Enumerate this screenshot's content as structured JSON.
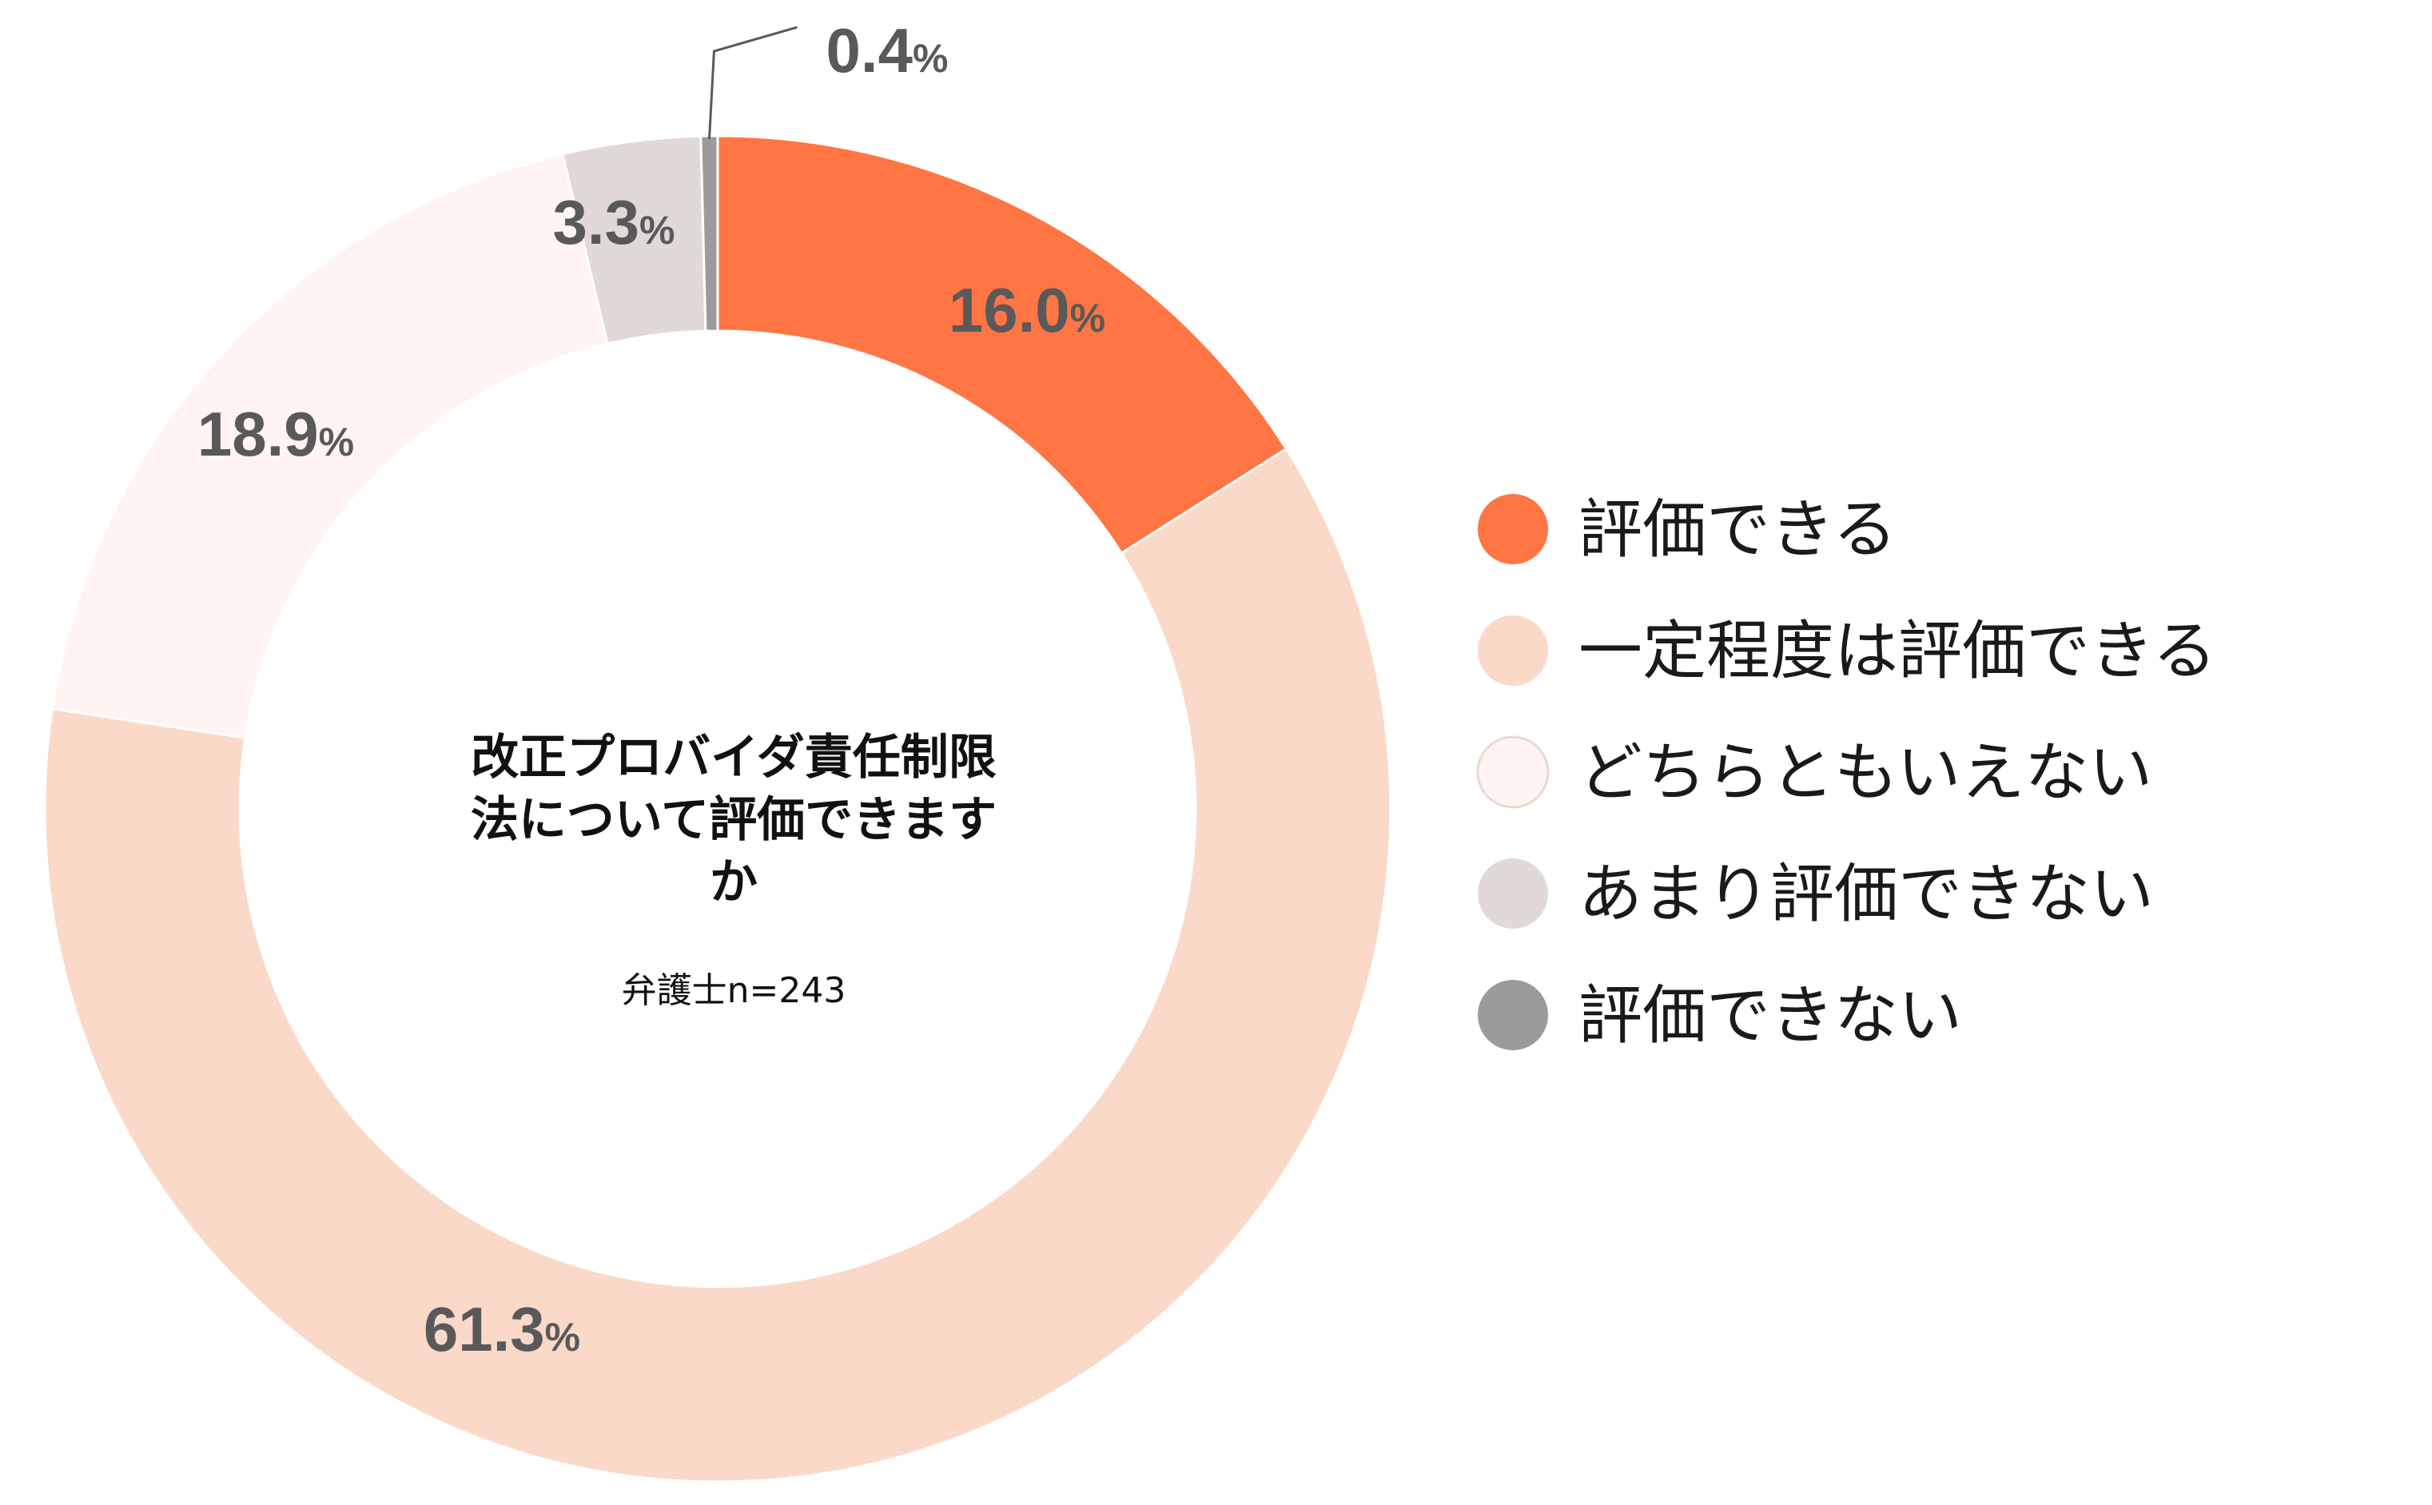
{
  "chart_data": {
    "type": "pie",
    "donut": true,
    "center_title_lines": [
      "改正プロバイダ責任制限",
      "法について評価できます",
      "か"
    ],
    "center_subtitle": "弁護士n=243",
    "unit": "%",
    "slices": [
      {
        "label": "評価できる",
        "value": 16.0,
        "value_text": "16.0",
        "color": "#FF7543"
      },
      {
        "label": "一定程度は評価できる",
        "value": 61.3,
        "value_text": "61.3",
        "color": "#FAD9C9"
      },
      {
        "label": "どちらともいえない",
        "value": 18.9,
        "value_text": "18.9",
        "color": "#FFF4F1"
      },
      {
        "label": "あまり評価できない",
        "value": 3.3,
        "value_text": "3.3",
        "color": "#E1D9D7"
      },
      {
        "label": "評価できない",
        "value": 0.4,
        "value_text": "0.4",
        "color": "#9B9B9B"
      }
    ],
    "legend_position": "right"
  }
}
